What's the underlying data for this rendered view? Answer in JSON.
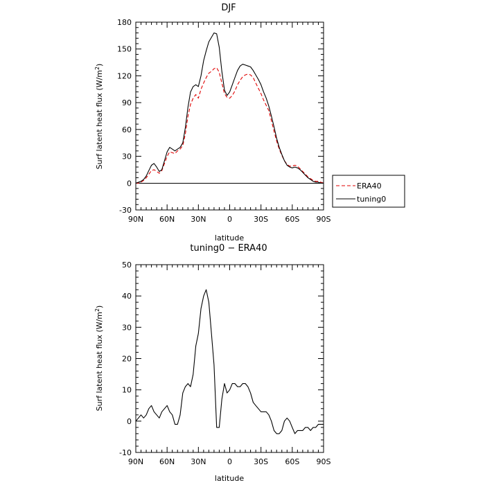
{
  "chart_data": [
    {
      "type": "line",
      "title": "DJF",
      "xlabel": "latitude",
      "ylabel_main": "Surf latent heat flux (W/m",
      "ylabel_sup": "2",
      "ylabel_tail": ")",
      "xlim": [
        90,
        -90
      ],
      "ylim": [
        -30,
        180
      ],
      "x_ticks": [
        90,
        60,
        30,
        0,
        -30,
        -60,
        -90
      ],
      "x_tick_labels": [
        "90N",
        "60N",
        "30N",
        "0",
        "30S",
        "60S",
        "90S"
      ],
      "y_ticks": [
        -30,
        0,
        30,
        60,
        90,
        120,
        150,
        180
      ],
      "y_tick_labels": [
        "-30",
        "0",
        "30",
        "60",
        "90",
        "120",
        "150",
        "180"
      ],
      "grid": false,
      "legend_position": "right",
      "series": [
        {
          "name": "ERA40",
          "color": "#e00000",
          "dash": "dashed",
          "x": [
            90,
            87.5,
            85,
            82.5,
            80,
            77.5,
            75,
            72.5,
            70,
            67.5,
            65,
            62.5,
            60,
            57.5,
            55,
            52.5,
            50,
            47.5,
            45,
            42.5,
            40,
            37.5,
            35,
            32.5,
            30,
            27.5,
            25,
            22.5,
            20,
            17.5,
            15,
            12.5,
            10,
            7.5,
            5,
            2.5,
            0,
            -2.5,
            -5,
            -7.5,
            -10,
            -12.5,
            -15,
            -17.5,
            -20,
            -22.5,
            -25,
            -27.5,
            -30,
            -32.5,
            -35,
            -37.5,
            -40,
            -42.5,
            -45,
            -47.5,
            -50,
            -52.5,
            -55,
            -57.5,
            -60,
            -62.5,
            -65,
            -67.5,
            -70,
            -72.5,
            -75,
            -77.5,
            -80,
            -82.5,
            -85,
            -87.5,
            -90
          ],
          "values": [
            0,
            0,
            1,
            3,
            6,
            10,
            14,
            15,
            13,
            11,
            14,
            22,
            30,
            35,
            34,
            33,
            36,
            38,
            42,
            55,
            75,
            88,
            95,
            99,
            95,
            105,
            112,
            118,
            123,
            125,
            128,
            129,
            124,
            112,
            100,
            96,
            95,
            98,
            103,
            110,
            115,
            119,
            121,
            122,
            121,
            118,
            112,
            106,
            100,
            93,
            87,
            81,
            70,
            58,
            47,
            38,
            31,
            25,
            21,
            19,
            19,
            20,
            19,
            16,
            13,
            10,
            7,
            5,
            3,
            2,
            2,
            1,
            0
          ]
        },
        {
          "name": "tuning0",
          "color": "#000000",
          "dash": "solid",
          "x": [
            90,
            87.5,
            85,
            82.5,
            80,
            77.5,
            75,
            72.5,
            70,
            67.5,
            65,
            62.5,
            60,
            57.5,
            55,
            52.5,
            50,
            47.5,
            45,
            42.5,
            40,
            37.5,
            35,
            32.5,
            30,
            27.5,
            25,
            22.5,
            20,
            17.5,
            15,
            12.5,
            10,
            7.5,
            5,
            2.5,
            0,
            -2.5,
            -5,
            -7.5,
            -10,
            -12.5,
            -15,
            -17.5,
            -20,
            -22.5,
            -25,
            -27.5,
            -30,
            -32.5,
            -35,
            -37.5,
            -40,
            -42.5,
            -45,
            -47.5,
            -50,
            -52.5,
            -55,
            -57.5,
            -60,
            -62.5,
            -65,
            -67.5,
            -70,
            -72.5,
            -75,
            -77.5,
            -80,
            -82.5,
            -85,
            -87.5,
            -90
          ],
          "values": [
            0,
            1,
            2,
            4,
            8,
            14,
            20,
            22,
            18,
            13,
            15,
            25,
            35,
            40,
            38,
            36,
            38,
            40,
            45,
            62,
            85,
            102,
            108,
            110,
            108,
            120,
            137,
            148,
            158,
            163,
            168,
            167,
            152,
            125,
            104,
            98,
            102,
            110,
            118,
            126,
            131,
            133,
            132,
            131,
            130,
            126,
            121,
            116,
            110,
            102,
            95,
            86,
            75,
            63,
            50,
            40,
            32,
            25,
            20,
            18,
            17,
            18,
            17,
            15,
            12,
            9,
            6,
            4,
            2,
            1,
            1,
            0,
            0
          ]
        }
      ]
    },
    {
      "type": "line",
      "title": "tuning0 − ERA40",
      "xlabel": "latitude",
      "ylabel_main": "Surf latent heat flux (W/m",
      "ylabel_sup": "2",
      "ylabel_tail": ")",
      "xlim": [
        90,
        -90
      ],
      "ylim": [
        -10,
        50
      ],
      "x_ticks": [
        90,
        60,
        30,
        0,
        -30,
        -60,
        -90
      ],
      "x_tick_labels": [
        "90N",
        "60N",
        "30N",
        "0",
        "30S",
        "60S",
        "90S"
      ],
      "y_ticks": [
        -10,
        0,
        10,
        20,
        30,
        40,
        50
      ],
      "y_tick_labels": [
        "-10",
        "0",
        "10",
        "20",
        "30",
        "40",
        "50"
      ],
      "grid": false,
      "series": [
        {
          "color": "#000000",
          "dash": "solid",
          "x": [
            90,
            87.5,
            85,
            82.5,
            80,
            77.5,
            75,
            72.5,
            70,
            67.5,
            65,
            62.5,
            60,
            57.5,
            55,
            52.5,
            50,
            47.5,
            45,
            42.5,
            40,
            37.5,
            35,
            32.5,
            30,
            27.5,
            25,
            22.5,
            20,
            17.5,
            15,
            12.5,
            10,
            7.5,
            5,
            2.5,
            0,
            -2.5,
            -5,
            -7.5,
            -10,
            -12.5,
            -15,
            -17.5,
            -20,
            -22.5,
            -25,
            -27.5,
            -30,
            -32.5,
            -35,
            -37.5,
            -40,
            -42.5,
            -45,
            -47.5,
            -50,
            -52.5,
            -55,
            -57.5,
            -60,
            -62.5,
            -65,
            -67.5,
            -70,
            -72.5,
            -75,
            -77.5,
            -80,
            -82.5,
            -85,
            -87.5,
            -90
          ],
          "values": [
            0,
            1,
            2,
            1,
            2,
            4,
            5,
            3,
            2,
            1,
            3,
            4,
            5,
            3,
            2,
            -1,
            -1,
            2,
            9,
            11,
            12,
            11,
            15,
            24,
            28,
            36,
            40,
            42,
            38,
            28,
            18,
            -2,
            -2,
            7,
            12,
            9,
            10,
            12,
            12,
            11,
            11,
            12,
            12,
            11,
            9,
            6,
            5,
            4,
            3,
            3,
            3,
            2,
            0,
            -3,
            -4,
            -4,
            -3,
            0,
            1,
            0,
            -2,
            -4,
            -3,
            -3,
            -3,
            -2,
            -2,
            -3,
            -2,
            -2,
            -1,
            -1,
            -1
          ]
        }
      ]
    }
  ],
  "legend": {
    "items": [
      {
        "label": "ERA40",
        "color": "#e00000",
        "dash": "dashed"
      },
      {
        "label": "tuning0",
        "color": "#000000",
        "dash": "solid"
      }
    ]
  }
}
